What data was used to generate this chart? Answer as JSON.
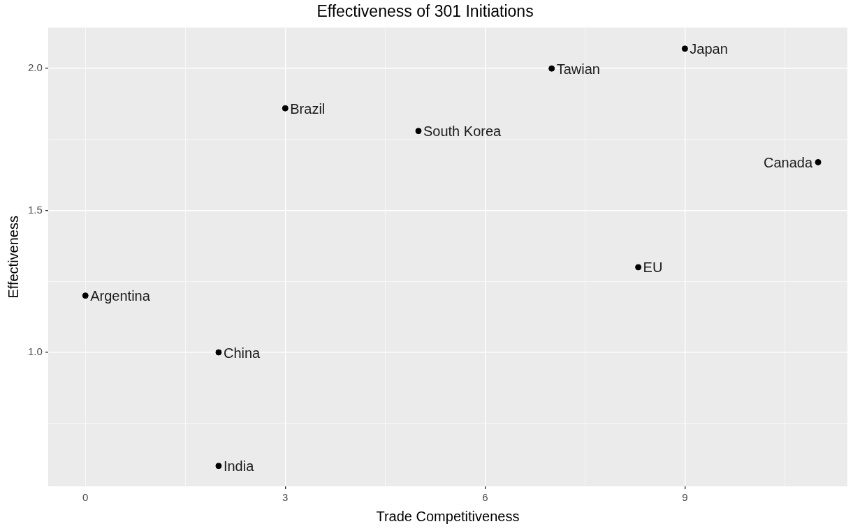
{
  "chart_data": {
    "type": "scatter",
    "title": "Effectiveness of 301 Initiations",
    "xlabel": "Trade Competitiveness",
    "ylabel": "Effectiveness",
    "x": [
      0,
      2,
      2,
      3,
      5,
      7,
      9,
      11,
      8.3
    ],
    "values": [
      1.2,
      1.0,
      0.6,
      1.86,
      1.78,
      2.0,
      2.07,
      1.67,
      1.3
    ],
    "color": "#000000",
    "marker": "circle",
    "grid": true,
    "legend": false,
    "xlim": [
      -0.56,
      11.44
    ],
    "xticks": [
      0,
      {
        "value": 1.5,
        "label": null
      },
      3,
      {
        "value": 4.5,
        "label": null
      },
      6,
      {
        "value": 7.5,
        "label": null
      },
      9,
      {
        "value": 10.5,
        "label": null
      }
    ],
    "ylim": [
      0.528,
      2.144
    ],
    "yticks": [
      {
        "value": 0.75,
        "label": null
      },
      {
        "value": 1,
        "label": "1.0"
      },
      {
        "value": 1.25,
        "label": null
      },
      1.5,
      {
        "value": 1.75,
        "label": null
      },
      {
        "value": 2,
        "label": "2.0"
      }
    ],
    "annotations": [
      {
        "text": "Argentina",
        "x": 0,
        "y": 1.2
      },
      {
        "text": "China",
        "x": 2,
        "y": 1.0
      },
      {
        "text": "India",
        "x": 2,
        "y": 0.6
      },
      {
        "text": "Brazil",
        "x": 3,
        "y": 1.86
      },
      {
        "text": "South Korea",
        "x": 5,
        "y": 1.78
      },
      {
        "text": "Tawian",
        "x": 7,
        "y": 2.0
      },
      {
        "text": "Japan",
        "x": 9,
        "y": 2.07
      },
      {
        "text": "Canada",
        "x": 11,
        "y": 1.67
      },
      {
        "text": "EU",
        "x": 8.3,
        "y": 1.3
      }
    ]
  }
}
